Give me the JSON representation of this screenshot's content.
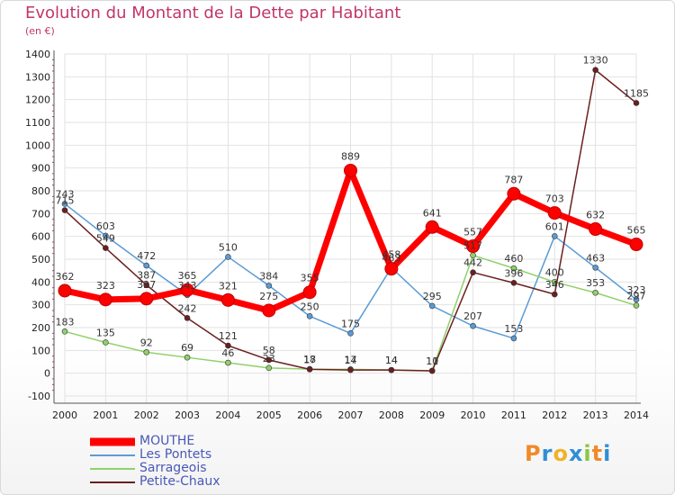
{
  "title": "Evolution du Montant de la Dette par Habitant",
  "subtitle": "(en €)",
  "logo": {
    "letters": [
      "P",
      "r",
      "o",
      "x",
      "i",
      "t",
      "i"
    ],
    "colors": [
      "#f08a2a",
      "#2f8fd6",
      "#f0b229",
      "#2f8fd6",
      "#8cc63f",
      "#f08a2a",
      "#2f8fd6"
    ]
  },
  "chart_data": {
    "type": "line",
    "x": [
      "2000",
      "2001",
      "2002",
      "2003",
      "2004",
      "2005",
      "2006",
      "2007",
      "2008",
      "2009",
      "2010",
      "2011",
      "2012",
      "2013",
      "2014"
    ],
    "ylim": [
      -100,
      1400
    ],
    "yticks": [
      "-100",
      "0",
      "100",
      "200",
      "300",
      "400",
      "500",
      "600",
      "700",
      "800",
      "900",
      "1000",
      "1100",
      "1200",
      "1300",
      "1400"
    ],
    "grid": true,
    "legend_position": "bottom-left",
    "series": [
      {
        "name": "MOUTHE",
        "color": "#ff0000",
        "values": [
          362,
          323,
          327,
          365,
          321,
          275,
          355,
          889,
          458,
          641,
          557,
          787,
          703,
          632,
          565
        ],
        "labels": [
          "362",
          "323",
          "327",
          "365",
          "321",
          "275",
          "355",
          "889",
          "458",
          "641",
          "557",
          "787",
          "703",
          "632",
          "565"
        ]
      },
      {
        "name": "Les Pontets",
        "color": "#5b9bd5",
        "values": [
          743,
          603,
          472,
          343,
          510,
          384,
          250,
          175,
          463,
          295,
          207,
          153,
          601,
          463,
          323
        ],
        "labels": [
          "743",
          "603",
          "472",
          "343",
          "510",
          "384",
          "250",
          "175",
          "463",
          "295",
          "207",
          "153",
          "601",
          "463",
          "323"
        ]
      },
      {
        "name": "Sarrageois",
        "color": "#8fd16a",
        "values": [
          183,
          135,
          92,
          69,
          46,
          23,
          18,
          17,
          14,
          11,
          517,
          460,
          400,
          353,
          297
        ],
        "labels": [
          "183",
          "135",
          "92",
          "69",
          "46",
          "23",
          "18",
          "17",
          "14",
          "11",
          "517",
          "460",
          "400",
          "353",
          "297"
        ]
      },
      {
        "name": "Petite-Chaux",
        "color": "#6b1f1f",
        "values": [
          715,
          549,
          387,
          242,
          121,
          58,
          17,
          14,
          14,
          10,
          442,
          396,
          346,
          1330,
          1185
        ],
        "labels": [
          "715",
          "549",
          "387",
          "242",
          "121",
          "58",
          "17",
          "14",
          "14",
          "10",
          "442",
          "396",
          "346",
          "1330",
          "1185"
        ]
      }
    ]
  }
}
